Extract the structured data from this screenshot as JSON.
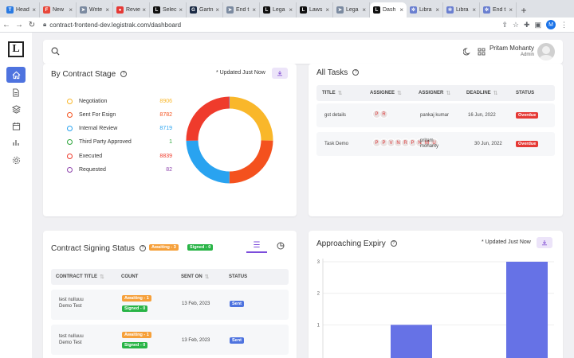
{
  "browser": {
    "tabs": [
      {
        "label": "Head",
        "fav_color": "#2a7ae2",
        "fav_glyph": "T"
      },
      {
        "label": "New",
        "fav_color": "#e8473a",
        "fav_glyph": "F"
      },
      {
        "label": "Write",
        "fav_color": "#7b8aa0",
        "fav_glyph": "➤"
      },
      {
        "label": "Revie",
        "fav_color": "#e53935",
        "fav_glyph": "●"
      },
      {
        "label": "Selec",
        "fav_color": "#111111",
        "fav_glyph": "L"
      },
      {
        "label": "Gartn",
        "fav_color": "#1a2a44",
        "fav_glyph": "G"
      },
      {
        "label": "End t",
        "fav_color": "#7b8aa0",
        "fav_glyph": "➤"
      },
      {
        "label": "Lega",
        "fav_color": "#111111",
        "fav_glyph": "L"
      },
      {
        "label": "Laws",
        "fav_color": "#111111",
        "fav_glyph": "L"
      },
      {
        "label": "Lega",
        "fav_color": "#7b8aa0",
        "fav_glyph": "➤"
      },
      {
        "label": "Dash",
        "fav_color": "#111111",
        "fav_glyph": "L",
        "active": true
      },
      {
        "label": "Libra",
        "fav_color": "#6a7fd0",
        "fav_glyph": "✲"
      },
      {
        "label": "Libra",
        "fav_color": "#6a7fd0",
        "fav_glyph": "✲"
      },
      {
        "label": "End t",
        "fav_color": "#6a7fd0",
        "fav_glyph": "✲"
      }
    ],
    "url": "contract-frontend-dev.legistrak.com/dashboard",
    "profile_initial": "M"
  },
  "header": {
    "user_name": "Pritam Mohanty",
    "user_role": "Admin"
  },
  "contract_stage": {
    "title": "By Contract Stage",
    "updated": "* Updated Just Now",
    "items": [
      {
        "label": "Negotiation",
        "value": "8906",
        "color": "#f9b72a"
      },
      {
        "label": "Sent For Esign",
        "value": "8782",
        "color": "#f4511e"
      },
      {
        "label": "Internal Review",
        "value": "8719",
        "color": "#29a3f0"
      },
      {
        "label": "Third Party Approved",
        "value": "1",
        "color": "#2ea63c"
      },
      {
        "label": "Executed",
        "value": "8839",
        "color": "#ef3b2c"
      },
      {
        "label": "Requested",
        "value": "82",
        "color": "#8e44ad"
      }
    ]
  },
  "all_tasks": {
    "title": "All Tasks",
    "columns": [
      "TITLE",
      "ASSIGNEE",
      "ASSIGNER",
      "DEADLINE",
      "STATUS"
    ],
    "rows": [
      {
        "title": "gst details",
        "assignees": [
          "P",
          "R"
        ],
        "assigner": "pankaj kumar",
        "deadline": "16 Jun, 2022",
        "status": "Overdue"
      },
      {
        "title": "Task Demo",
        "assignees": [
          "P",
          "P",
          "V",
          "N",
          "R",
          "P",
          "N",
          "M",
          "U"
        ],
        "assigner": "pritam mohanty",
        "deadline": "30 Jun, 2022",
        "status": "Overdue"
      }
    ]
  },
  "signing_status": {
    "title": "Contract Signing Status",
    "awaiting_badge": "Awaiting - 3",
    "signed_badge": "Signed - 0",
    "columns": [
      "CONTRACT TITLE",
      "COUNT",
      "SENT ON",
      "STATUS"
    ],
    "rows": [
      {
        "title_line1": "test nulluuu",
        "title_line2": "Demo Test",
        "awaiting": "Awaiting - 1",
        "signed": "Signed - 0",
        "sent_on": "13 Feb, 2023",
        "status": "Sent"
      },
      {
        "title_line1": "test nulluuu",
        "title_line2": "Demo Test",
        "awaiting": "Awaiting - 1",
        "signed": "Signed - 0",
        "sent_on": "13 Feb, 2023",
        "status": "Sent"
      }
    ]
  },
  "expiry": {
    "title": "Approaching Expiry",
    "updated": "* Updated Just Now"
  },
  "chart_data": [
    {
      "type": "pie",
      "categories": [
        "Negotiation",
        "Sent For Esign",
        "Internal Review",
        "Third Party Approved",
        "Executed",
        "Requested"
      ],
      "values": [
        8906,
        8782,
        8719,
        1,
        8839,
        82
      ],
      "colors": [
        "#f9b72a",
        "#f4511e",
        "#29a3f0",
        "#2ea63c",
        "#ef3b2c",
        "#8e44ad"
      ],
      "donut": true,
      "title": "By Contract Stage"
    },
    {
      "type": "bar",
      "categories": [
        "",
        ""
      ],
      "values": [
        1,
        3
      ],
      "ylim": [
        0,
        3
      ],
      "yticks": [
        "1",
        "2",
        "3"
      ],
      "color": "#6672e6",
      "title": "Approaching Expiry"
    }
  ]
}
